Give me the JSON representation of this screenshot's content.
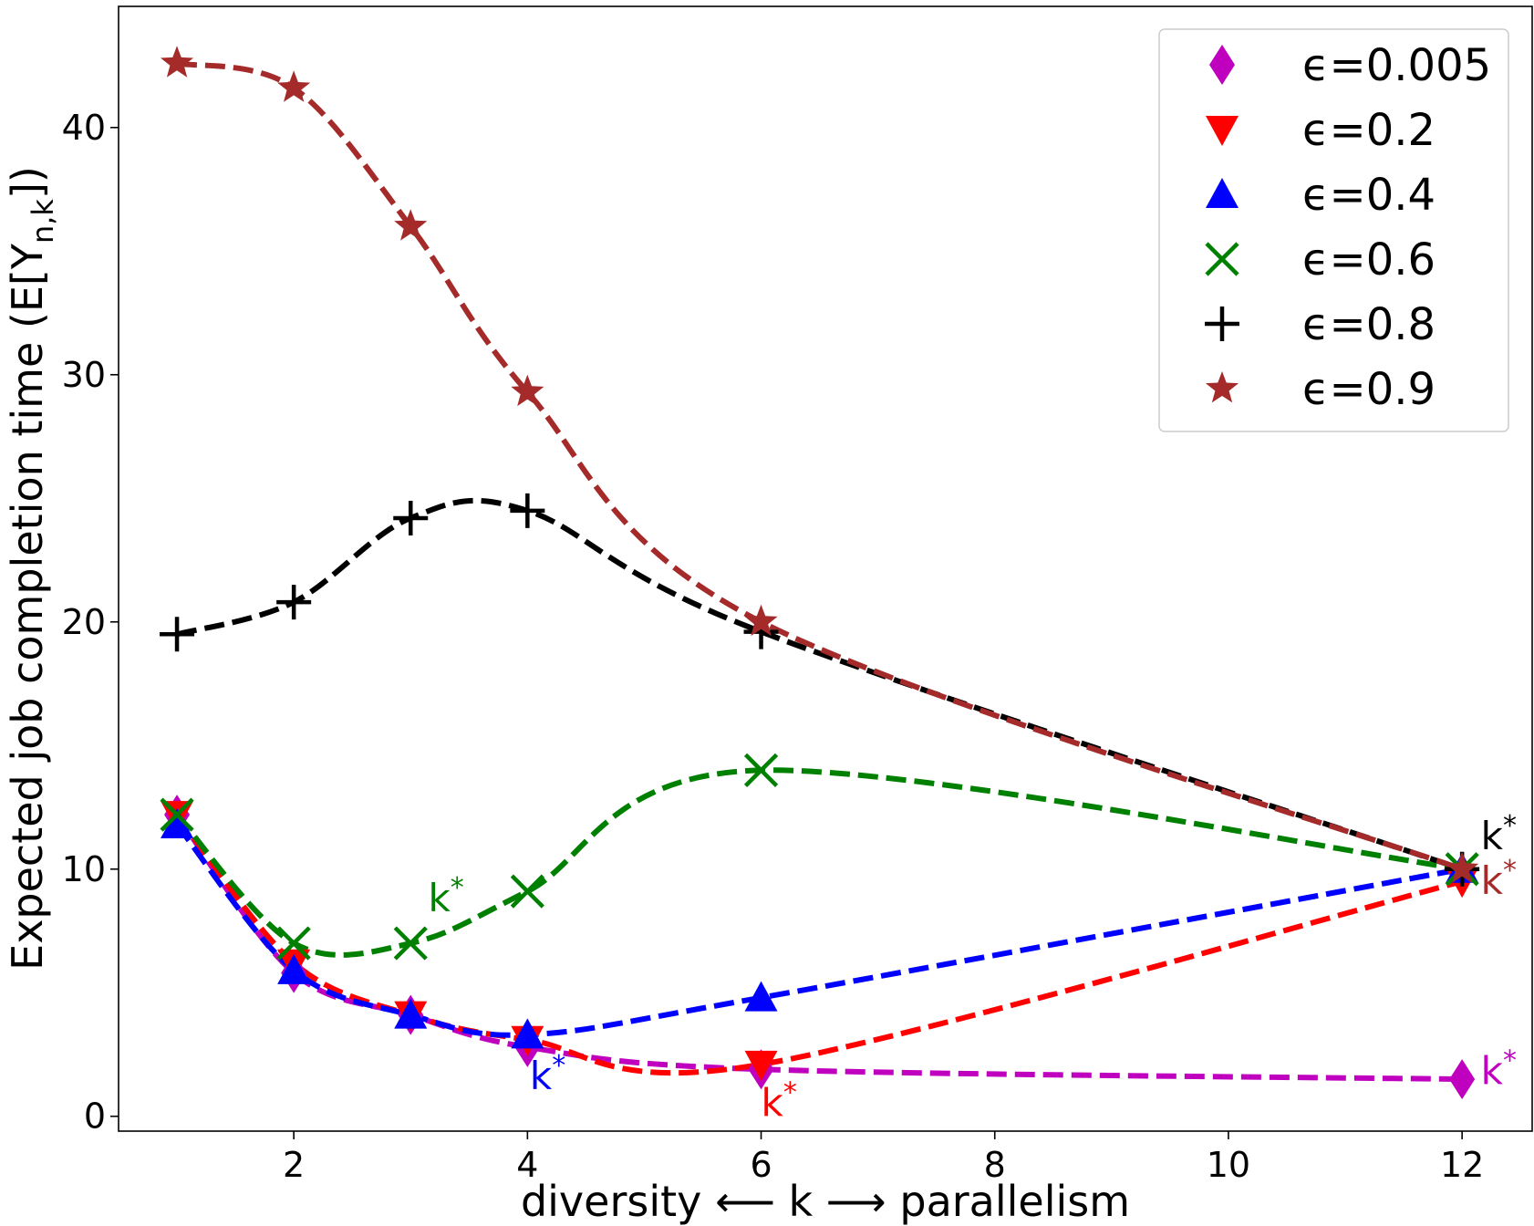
{
  "chart_data": {
    "type": "line",
    "xlabel": "diversity ⟵ k ⟶ parallelism",
    "ylabel": "Expected job completion time (E[Y",
    "ylabel_sub": "n,k",
    "ylabel_end": "])",
    "xlim": [
      0.5,
      12.6
    ],
    "ylim": [
      -0.6,
      44.9
    ],
    "x_ticks": [
      2,
      4,
      6,
      8,
      10,
      12
    ],
    "y_ticks": [
      0,
      10,
      20,
      30,
      40
    ],
    "x_tick_labels": [
      "2",
      "4",
      "6",
      "8",
      "10",
      "12"
    ],
    "y_tick_labels": [
      "0",
      "10",
      "20",
      "30",
      "40"
    ],
    "legend_position": "top-right",
    "x": [
      1,
      2,
      3,
      4,
      6,
      12
    ],
    "series": [
      {
        "name": "ϵ=0.005",
        "color": "#bf00bf",
        "marker": "diamond",
        "values": [
          12.2,
          5.8,
          4.1,
          2.8,
          1.9,
          1.5
        ]
      },
      {
        "name": "ϵ=0.2",
        "color": "#ff0000",
        "marker": "triangle-down",
        "values": [
          12.2,
          6.2,
          4.1,
          3.1,
          2.1,
          9.5
        ]
      },
      {
        "name": "ϵ=0.4",
        "color": "#0000ff",
        "marker": "triangle-up",
        "values": [
          11.8,
          5.9,
          4.1,
          3.3,
          4.8,
          10.0
        ]
      },
      {
        "name": "ϵ=0.6",
        "color": "#008000",
        "marker": "x",
        "values": [
          12.2,
          7.0,
          7.0,
          9.1,
          14.0,
          10.0
        ]
      },
      {
        "name": "ϵ=0.8",
        "color": "#000000",
        "marker": "plus",
        "values": [
          19.5,
          20.8,
          24.2,
          24.5,
          19.6,
          10.0
        ]
      },
      {
        "name": "ϵ=0.9",
        "color": "#a52a2a",
        "marker": "star",
        "values": [
          42.6,
          41.6,
          36.0,
          29.3,
          20.0,
          10.0
        ]
      }
    ],
    "annotations": [
      {
        "text": "k",
        "sup": "*",
        "x": 3.15,
        "y": 8.3,
        "color": "#008000"
      },
      {
        "text": "k",
        "sup": "*",
        "x": 4.02,
        "y": 1.1,
        "color": "#0000ff"
      },
      {
        "text": "k",
        "sup": "*",
        "x": 6.0,
        "y": 0.0,
        "color": "#ff0000"
      },
      {
        "text": "k",
        "sup": "*",
        "x": 12.16,
        "y": 1.3,
        "color": "#bf00bf"
      },
      {
        "text": "k",
        "sup": "*",
        "x": 12.16,
        "y": 9.0,
        "color": "#a52a2a"
      },
      {
        "text": "k",
        "sup": "*",
        "x": 12.16,
        "y": 10.8,
        "color": "#000000"
      }
    ]
  }
}
